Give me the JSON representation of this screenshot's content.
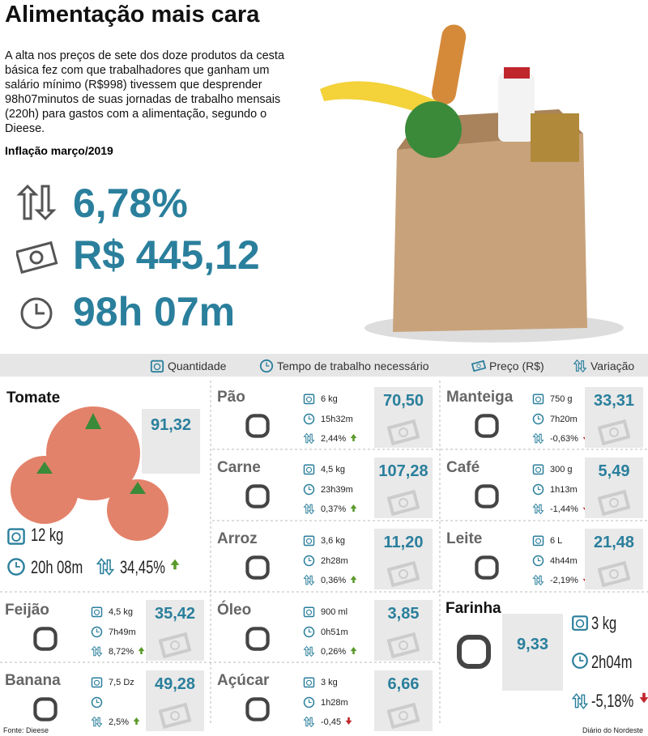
{
  "header": {
    "title": "Alimentação mais cara",
    "intro": "A alta nos preços de sete dos doze produtos da cesta básica fez com que trabalhadores que ganham um salário mínimo (R$998) tivessem que desprender 98h07minutos de suas jornadas de trabalho mensais (220h) para gastos com a alimentação, segundo o Dieese.",
    "subtitle": "Inflação março/2019"
  },
  "stats": [
    "6,78%",
    "R$ 445,12",
    "98h 07m"
  ],
  "legend": [
    "Quantidade",
    "Tempo de trabalho necessário",
    "Preço (R$)",
    "Variação"
  ],
  "products": [
    {
      "name": "Tomate",
      "quantity": "12 kg",
      "time": "20h 08m",
      "variation": "34,45%",
      "price": "91,32"
    },
    {
      "name": "Pão",
      "quantity": "6 kg",
      "time": "15h32m",
      "variation": "2,44%",
      "price": "70,50"
    },
    {
      "name": "Manteiga",
      "quantity": "750 g",
      "time": "7h20m",
      "variation": "-0,63%",
      "price": "33,31"
    },
    {
      "name": "Carne",
      "quantity": "4,5 kg",
      "time": "23h39m",
      "variation": "0,37%",
      "price": "107,28"
    },
    {
      "name": "Café",
      "quantity": "300 g",
      "time": "1h13m",
      "variation": "-1,44%",
      "price": "5,49"
    },
    {
      "name": "Arroz",
      "quantity": "3,6 kg",
      "time": "2h28m",
      "variation": "0,36%",
      "price": "11,20"
    },
    {
      "name": "Leite",
      "quantity": "6 L",
      "time": "4h44m",
      "variation": "-2,19%",
      "price": "21,48"
    },
    {
      "name": "Feijão",
      "quantity": "4,5 kg",
      "time": "7h49m",
      "variation": "8,72%",
      "price": "35,42"
    },
    {
      "name": "Óleo",
      "quantity": "900 ml",
      "time": "0h51m",
      "variation": "0,26%",
      "price": "3,85"
    },
    {
      "name": "Farinha",
      "quantity": "3 kg",
      "time": "2h04m",
      "variation": "-5,18%",
      "price": "9,33"
    },
    {
      "name": "Banana",
      "quantity": "7,5 Dz",
      "variation": "2,5%",
      "price": "49,28"
    },
    {
      "name": "Açúcar",
      "quantity": "3 kg",
      "time": "1h28m",
      "variation": "-0,45",
      "price": "6,66"
    }
  ],
  "footer": {
    "source": "Fonte: Dieese",
    "credit": "Diário do Nordeste"
  }
}
